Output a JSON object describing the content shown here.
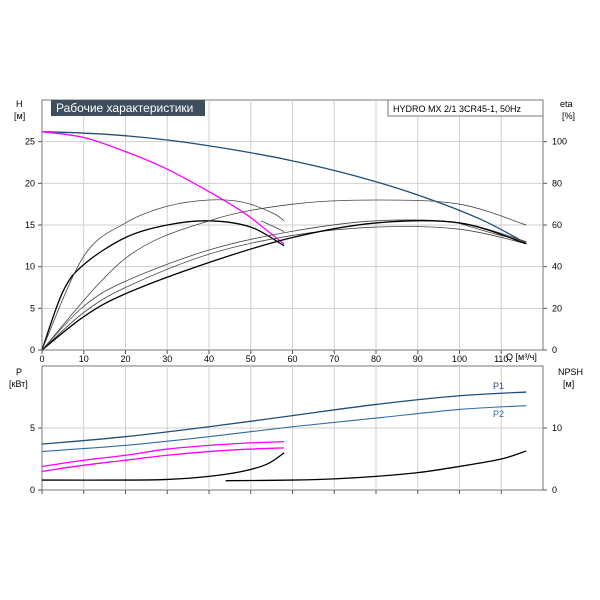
{
  "chart_data": [
    {
      "type": "line",
      "title": "Рабочие характеристики",
      "subtitle": "HYDRO MX 2/1 3CR45-1, 50Hz",
      "xlabel": "Q [м³/ч]",
      "xlim": [
        0,
        120
      ],
      "x_ticks": [
        0,
        10,
        20,
        30,
        40,
        50,
        60,
        70,
        80,
        90,
        100,
        110
      ],
      "ylabel": "H",
      "ylabel_unit": "[м]",
      "ylim": [
        0,
        30
      ],
      "y_ticks": [
        0,
        5,
        10,
        15,
        20,
        25
      ],
      "y2label": "eta",
      "y2label_unit": "[%]",
      "y2lim": [
        0,
        120
      ],
      "y2_ticks": [
        0,
        20,
        40,
        60,
        80,
        100
      ],
      "grid": true,
      "series": [
        {
          "color": "#1f4e79",
          "axis": "H",
          "x": [
            0,
            15,
            30,
            45,
            60,
            75,
            90,
            105,
            116
          ],
          "y": [
            26.2,
            25.9,
            25.2,
            24.1,
            22.7,
            20.9,
            18.6,
            15.7,
            12.8
          ]
        },
        {
          "color": "#ff00ff",
          "axis": "H",
          "x": [
            0,
            10,
            20,
            30,
            40,
            48,
            53,
            58
          ],
          "y": [
            26.2,
            25.5,
            23.8,
            21.7,
            19.0,
            16.6,
            14.7,
            12.7
          ]
        },
        {
          "color": "#444444",
          "axis": "H",
          "x": [
            52.5,
            56,
            58
          ],
          "y": [
            15.5,
            14.7,
            14.2
          ]
        },
        {
          "color": "#444444",
          "axis": "H",
          "x": [
            100,
            108,
            116
          ],
          "y": [
            15.2,
            14.0,
            13.0
          ]
        },
        {
          "color": "#000000",
          "axis": "eta",
          "x": [
            0,
            5,
            10,
            20,
            30,
            40,
            50,
            58
          ],
          "y": [
            0,
            28,
            41,
            54,
            60,
            62,
            59,
            50
          ]
        },
        {
          "color": "#444444",
          "axis": "eta",
          "x": [
            0,
            10,
            20,
            30,
            40,
            48,
            55,
            58
          ],
          "y": [
            0,
            45,
            61,
            69,
            72,
            71,
            66,
            62
          ]
        },
        {
          "color": "#444444",
          "axis": "eta",
          "x": [
            0,
            10,
            20,
            40,
            60,
            80,
            100,
            116
          ],
          "y": [
            0,
            21,
            33,
            48,
            57,
            62,
            61,
            52
          ]
        },
        {
          "color": "#444444",
          "axis": "eta",
          "x": [
            0,
            10,
            20,
            40,
            60,
            80,
            100,
            116
          ],
          "y": [
            0,
            18,
            30,
            46,
            55,
            59,
            58,
            51
          ]
        },
        {
          "color": "#000000",
          "axis": "eta",
          "x": [
            0,
            10,
            20,
            40,
            60,
            80,
            100,
            116
          ],
          "y": [
            0,
            16,
            27,
            42,
            54,
            61,
            61,
            51
          ]
        },
        {
          "color": "#444444",
          "axis": "eta",
          "x": [
            0,
            20,
            40,
            60,
            80,
            100,
            116
          ],
          "y": [
            0,
            44,
            62,
            70,
            72,
            70,
            60
          ]
        }
      ]
    },
    {
      "type": "line",
      "xlim": [
        0,
        120
      ],
      "ylabel": "P",
      "ylabel_unit": "[кВт]",
      "ylim": [
        0,
        10
      ],
      "y_ticks": [
        0,
        5
      ],
      "y2label": "NPSH",
      "y2label_unit": "[м]",
      "y2lim": [
        0,
        20
      ],
      "y2_ticks": [
        0,
        10
      ],
      "grid": true,
      "series": [
        {
          "name": "P1",
          "color": "#1f4e79",
          "axis": "P",
          "x": [
            0,
            20,
            40,
            60,
            80,
            100,
            116
          ],
          "y": [
            3.7,
            4.3,
            5.1,
            6.0,
            6.9,
            7.6,
            7.9
          ]
        },
        {
          "name": "P2",
          "color": "#2e6da4",
          "axis": "P",
          "x": [
            0,
            20,
            40,
            60,
            80,
            100,
            116
          ],
          "y": [
            3.1,
            3.6,
            4.3,
            5.1,
            5.8,
            6.5,
            6.8
          ]
        },
        {
          "color": "#ff00ff",
          "axis": "P",
          "x": [
            0,
            10,
            20,
            30,
            40,
            50,
            58
          ],
          "y": [
            1.9,
            2.4,
            2.8,
            3.3,
            3.6,
            3.8,
            3.9
          ]
        },
        {
          "color": "#ff00ff",
          "axis": "P",
          "x": [
            0,
            10,
            20,
            30,
            40,
            50,
            58
          ],
          "y": [
            1.5,
            2.0,
            2.4,
            2.8,
            3.1,
            3.3,
            3.4
          ]
        },
        {
          "color": "#000000",
          "axis": "NPSH",
          "x": [
            0,
            20,
            30,
            40,
            48,
            54,
            58
          ],
          "y": [
            1.6,
            1.6,
            1.7,
            2.2,
            3.0,
            4.2,
            6.0
          ]
        },
        {
          "color": "#000000",
          "axis": "NPSH",
          "x": [
            44,
            60,
            70,
            80,
            90,
            100,
            110,
            116
          ],
          "y": [
            1.5,
            1.6,
            1.8,
            2.2,
            2.8,
            3.8,
            5.0,
            6.3
          ]
        }
      ]
    }
  ]
}
